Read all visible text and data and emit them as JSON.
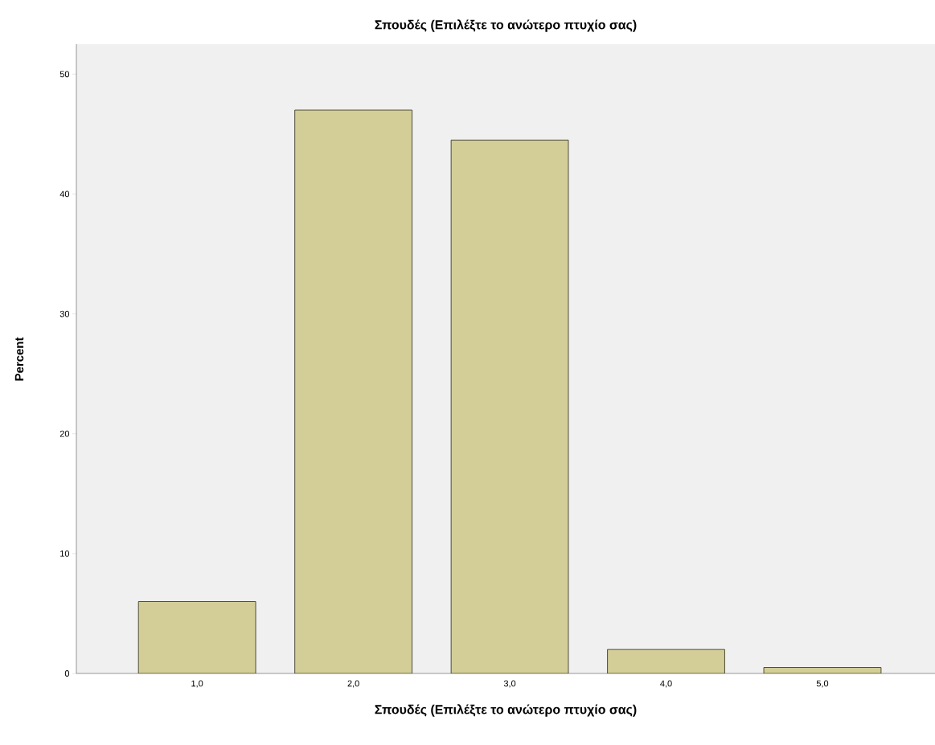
{
  "chart_data": {
    "type": "bar",
    "title": "Σπουδές (Επιλέξτε το ανώτερο πτυχίο σας)",
    "xlabel": "Σπουδές (Επιλέξτε το ανώτερο πτυχίο σας)",
    "ylabel": "Percent",
    "categories": [
      "1,0",
      "2,0",
      "3,0",
      "4,0",
      "5,0"
    ],
    "values": [
      6.0,
      47.0,
      44.5,
      2.0,
      0.5
    ],
    "color": "#d3ce97",
    "ylim": [
      0,
      52.5
    ],
    "yticks": [
      0,
      10,
      20,
      30,
      40,
      50
    ],
    "grid": false
  }
}
